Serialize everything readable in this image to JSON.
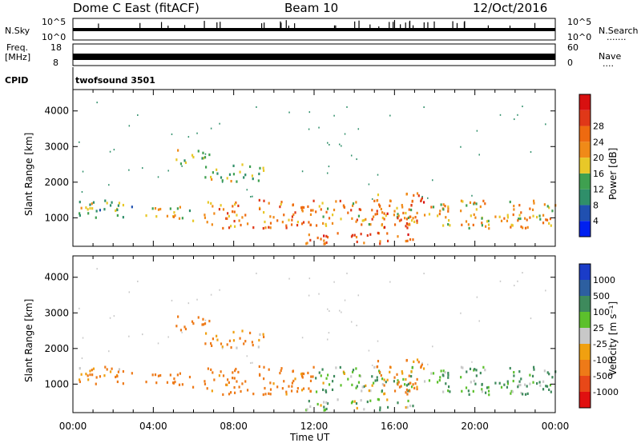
{
  "header": {
    "station": "Dome C East (fitACF)",
    "beam": "Beam 10",
    "date": "12/Oct/2016"
  },
  "nsky_panel": {
    "label": "N.Sky",
    "ticks_left": [
      "10^5",
      "10^0"
    ],
    "ticks_right": [
      "10^5",
      "10^0"
    ],
    "right_label": "N.Search",
    "right_dots": "......."
  },
  "freq_panel": {
    "label_line1": "Freq.",
    "label_line2": "[MHz]",
    "ticks_left": [
      "18",
      "8"
    ],
    "ticks_right": [
      "60",
      "0"
    ],
    "right_label": "Nave",
    "right_dots": "...."
  },
  "cpid": {
    "label": "CPID",
    "value": "twofsound 3501"
  },
  "x_axis": {
    "title": "Time UT",
    "ticks": [
      "00:00",
      "04:00",
      "08:00",
      "12:00",
      "16:00",
      "20:00",
      "00:00"
    ]
  },
  "y_axis": {
    "title": "Slant Range [km]",
    "ticks": [
      "1000",
      "2000",
      "3000",
      "4000"
    ]
  },
  "power_scale": {
    "title": "Power [dB]",
    "labels": [
      "4",
      "8",
      "12",
      "16",
      "20",
      "24",
      "28"
    ],
    "colors": [
      "#0020f0",
      "#2050b0",
      "#2f8f6a",
      "#3fa050",
      "#e8c828",
      "#f08a18",
      "#ee6a10",
      "#e03818",
      "#d81010"
    ]
  },
  "velocity_scale": {
    "title": "Velocity [m s⁻¹]",
    "labels": [
      "1000",
      "500",
      "100",
      "25",
      "-25",
      "-100",
      "-500",
      "-1000"
    ],
    "colors": [
      "#1a3cc8",
      "#2d5fa0",
      "#3e8a5c",
      "#5cc02c",
      "#c8c8c8",
      "#f0a010",
      "#ee7a18",
      "#e84818",
      "#e01010"
    ]
  },
  "chart_data": {
    "type": "heatmap",
    "x_unit": "hours UT",
    "xlim": [
      0,
      24
    ],
    "ylim": [
      200,
      4600
    ],
    "scatter_regions": [
      {
        "t": [
          0.0,
          3.2
        ],
        "r": [
          1000,
          1500
        ],
        "power": 14,
        "velocity": -150
      },
      {
        "t": [
          3.5,
          6.0
        ],
        "r": [
          900,
          1300
        ],
        "power": 18,
        "velocity": -250
      },
      {
        "t": [
          5.0,
          6.8
        ],
        "r": [
          2500,
          2900
        ],
        "power": 16,
        "velocity": -300
      },
      {
        "t": [
          6.5,
          9.5
        ],
        "r": [
          2000,
          2500
        ],
        "power": 15,
        "velocity": -120
      },
      {
        "t": [
          6.5,
          12.0
        ],
        "r": [
          700,
          1500
        ],
        "power": 24,
        "velocity": -200
      },
      {
        "t": [
          11.5,
          17.0
        ],
        "r": [
          250,
          600
        ],
        "power": 27,
        "velocity": 80
      },
      {
        "t": [
          12.0,
          17.0
        ],
        "r": [
          750,
          1500
        ],
        "power": 22,
        "velocity": 60
      },
      {
        "t": [
          15.0,
          17.5
        ],
        "r": [
          700,
          1700
        ],
        "power": 26,
        "velocity": -150
      },
      {
        "t": [
          17.5,
          24.0
        ],
        "r": [
          700,
          1500
        ],
        "power": 20,
        "velocity": 120
      }
    ]
  }
}
